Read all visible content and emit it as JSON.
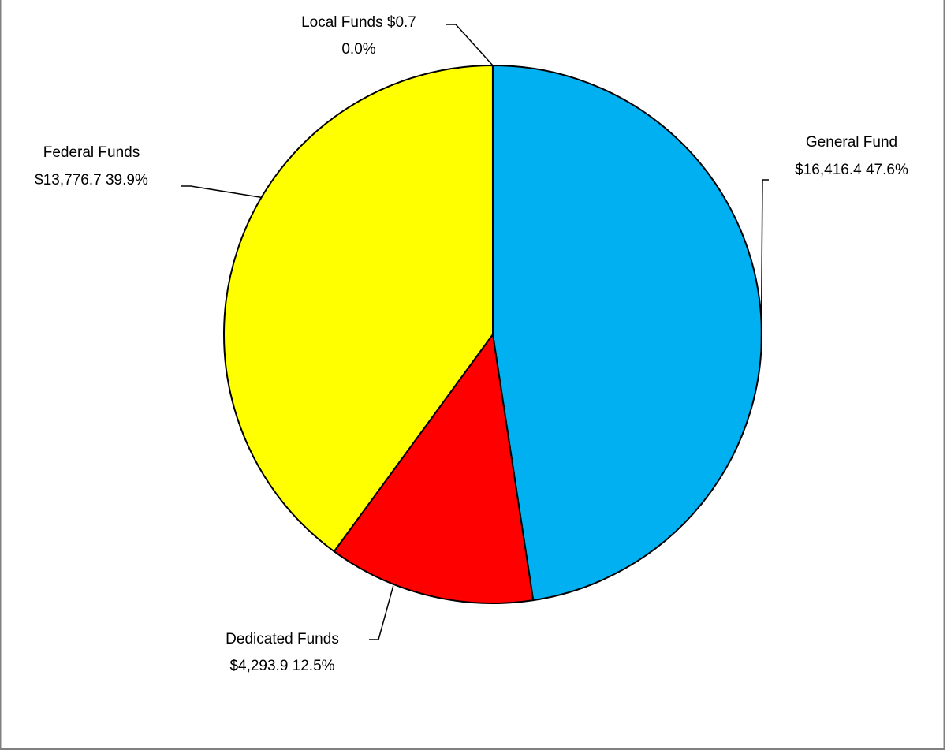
{
  "chart_data": {
    "type": "pie",
    "title": "",
    "slices": [
      {
        "label": "General Fund",
        "value": 16416.4,
        "value_text": "$16,416.4",
        "percent": 47.6,
        "percent_text": "47.6%",
        "color": "#00B0F0"
      },
      {
        "label": "Dedicated Funds",
        "value": 4293.9,
        "value_text": "$4,293.9",
        "percent": 12.5,
        "percent_text": "12.5%",
        "color": "#FF0000"
      },
      {
        "label": "Federal Funds",
        "value": 13776.7,
        "value_text": "$13,776.7",
        "percent": 39.9,
        "percent_text": "39.9%",
        "color": "#FFFF00"
      },
      {
        "label": "Local Funds",
        "value": 0.7,
        "value_text": "$0.7",
        "percent": 0.0,
        "percent_text": "0.0%",
        "color": "#FFFF00"
      }
    ],
    "legend": "none",
    "data_labels": "outside with leader lines",
    "start_angle": "12 o'clock",
    "direction": "clockwise",
    "slice_border_color": "#000000",
    "frame_border_color": "#808080"
  }
}
